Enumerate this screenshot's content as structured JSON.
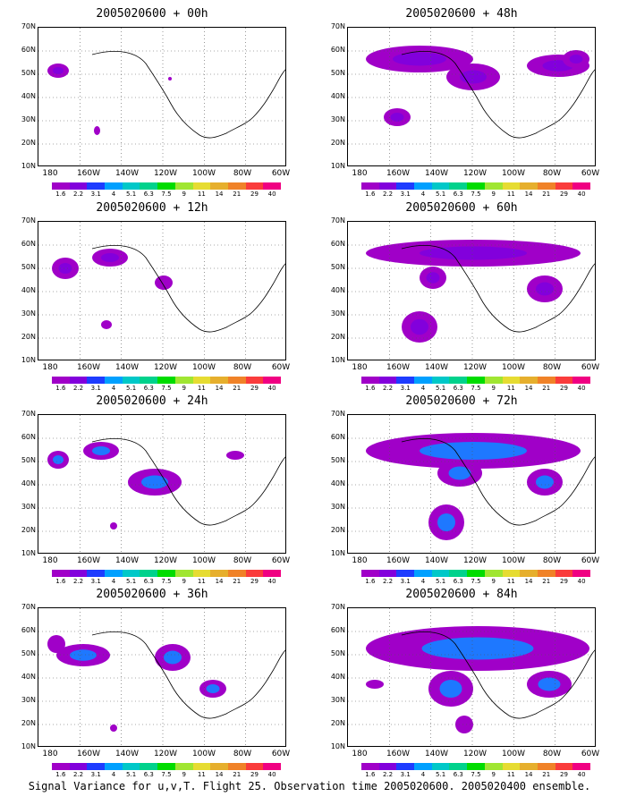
{
  "panels": [
    {
      "title": "2005020600 + 00h"
    },
    {
      "title": "2005020600 + 48h"
    },
    {
      "title": "2005020600 + 12h"
    },
    {
      "title": "2005020600 + 60h"
    },
    {
      "title": "2005020600 + 24h"
    },
    {
      "title": "2005020600 + 72h"
    },
    {
      "title": "2005020600 + 36h"
    },
    {
      "title": "2005020600 + 84h"
    }
  ],
  "lat_labels": [
    "70N",
    "60N",
    "50N",
    "40N",
    "30N",
    "20N",
    "10N"
  ],
  "lon_labels": [
    "180",
    "160W",
    "140W",
    "120W",
    "100W",
    "80W",
    "60W"
  ],
  "colorbar": {
    "labels": [
      "1.6",
      "2.2",
      "3.1",
      "4",
      "5.1",
      "6.3",
      "7.5",
      "9",
      "11",
      "14",
      "21",
      "29",
      "40"
    ],
    "colors": [
      "#a000c8",
      "#8200dc",
      "#1e3cff",
      "#00a0ff",
      "#00c8c8",
      "#00d28c",
      "#00dc00",
      "#a0e632",
      "#e6dc32",
      "#e6af2d",
      "#f08228",
      "#fa3c3c",
      "#f00082"
    ]
  },
  "caption": "Signal Variance for u,v,T. Flight 25. Observation time 2005020600. 2005020400 ensemble."
}
